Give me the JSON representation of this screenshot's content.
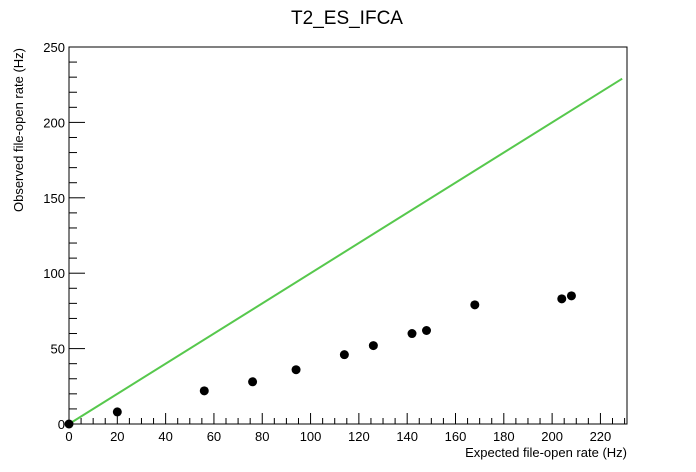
{
  "chart_data": {
    "type": "scatter",
    "title": "T2_ES_IFCA",
    "xlabel": "Expected file-open rate (Hz)",
    "ylabel": "Observed file-open rate (Hz)",
    "xlim": [
      0,
      231
    ],
    "ylim": [
      0,
      250
    ],
    "xticks": [
      0,
      20,
      40,
      60,
      80,
      100,
      120,
      140,
      160,
      180,
      200,
      220
    ],
    "yticks": [
      0,
      50,
      100,
      150,
      200,
      250
    ],
    "grid": false,
    "legend": "none",
    "series": [
      {
        "type": "scatter",
        "color": "#000000",
        "points": [
          {
            "x": 0,
            "y": 0
          },
          {
            "x": 20,
            "y": 8
          },
          {
            "x": 56,
            "y": 22
          },
          {
            "x": 76,
            "y": 28
          },
          {
            "x": 94,
            "y": 36
          },
          {
            "x": 114,
            "y": 46
          },
          {
            "x": 126,
            "y": 52
          },
          {
            "x": 142,
            "y": 60
          },
          {
            "x": 148,
            "y": 62
          },
          {
            "x": 168,
            "y": 79
          },
          {
            "x": 204,
            "y": 83
          },
          {
            "x": 208,
            "y": 85
          }
        ]
      },
      {
        "type": "line",
        "color": "#57c84d",
        "points": [
          {
            "x": 0,
            "y": 0
          },
          {
            "x": 229,
            "y": 229
          }
        ]
      }
    ]
  }
}
